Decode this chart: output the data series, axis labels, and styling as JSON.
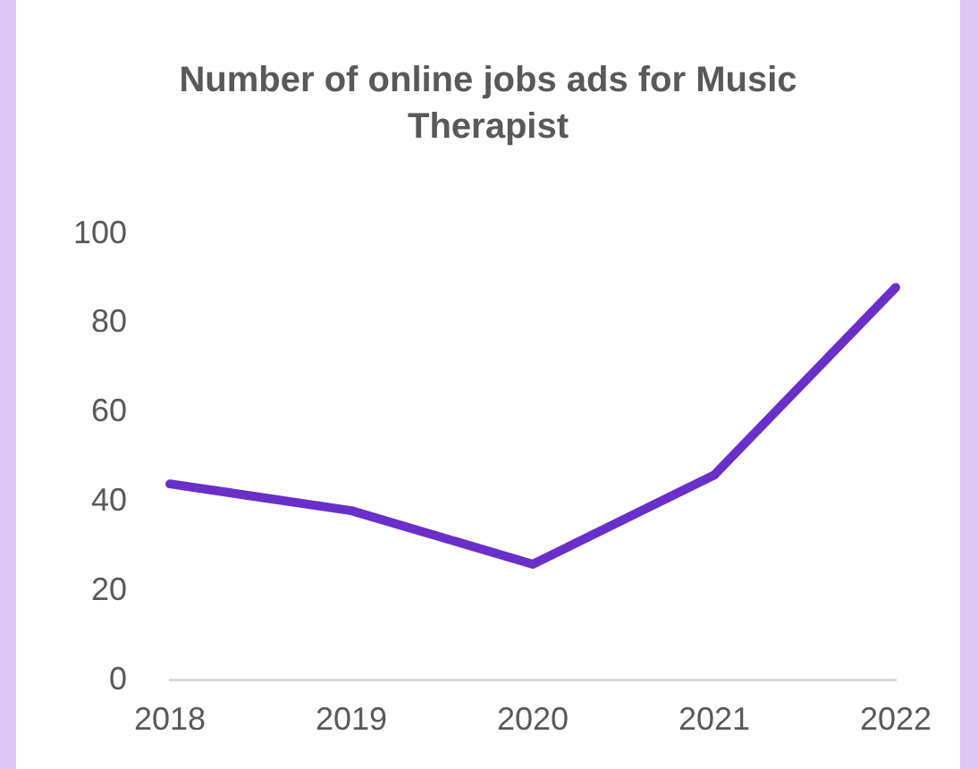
{
  "chart_data": {
    "type": "line",
    "title": "Number of online jobs ads for Music Therapist",
    "categories": [
      "2018",
      "2019",
      "2020",
      "2021",
      "2022"
    ],
    "series": [
      {
        "color": "#6a2fc8",
        "values": [
          44,
          38,
          26,
          46,
          88
        ]
      }
    ],
    "ylim": [
      0,
      100
    ],
    "yticks": [
      0,
      20,
      40,
      60,
      80,
      100
    ],
    "grid": false,
    "legend": false,
    "marker": "none"
  }
}
